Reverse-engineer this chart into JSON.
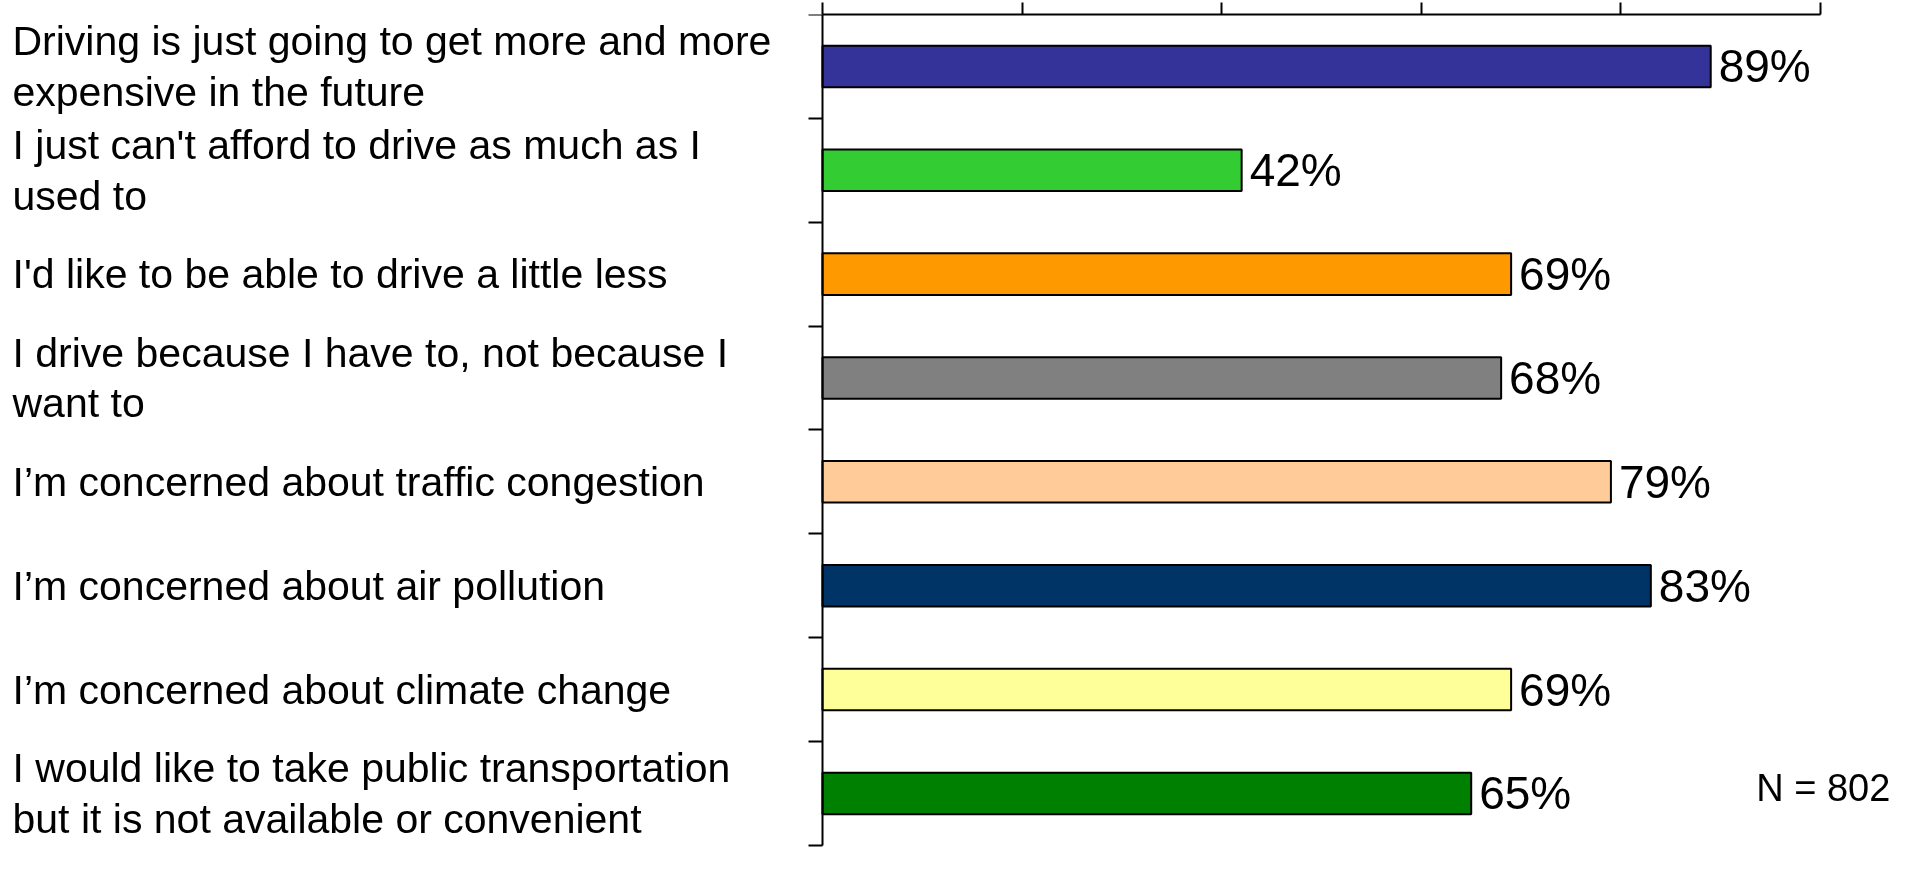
{
  "chart_data": {
    "type": "bar",
    "orientation": "horizontal",
    "categories": [
      "Driving is just going to get more and more expensive in the future",
      "I just can't afford to drive as much as I used to",
      "I'd like to be able to drive a little less",
      "I drive because I have to, not because I want to",
      "I’m concerned about traffic congestion",
      "I’m concerned about air pollution",
      "I’m concerned about climate change",
      "I would like to take public transportation but it is not available or convenient"
    ],
    "values": [
      89,
      42,
      69,
      68,
      79,
      83,
      69,
      65
    ],
    "colors": [
      "#333399",
      "#33cc33",
      "#ff9900",
      "#808080",
      "#ffcc99",
      "#003366",
      "#ffff99",
      "#008000"
    ],
    "value_labels": [
      "89%",
      "42%",
      "69%",
      "68%",
      "79%",
      "83%",
      "69%",
      "65%"
    ],
    "xlim": [
      0,
      100
    ],
    "xticks": [
      {
        "value": 0,
        "label": null
      },
      {
        "value": 20,
        "label": null
      },
      {
        "value": 40,
        "label": null
      },
      {
        "value": 60,
        "label": null
      },
      {
        "value": 80,
        "label": null
      },
      {
        "value": 100,
        "label": null
      }
    ],
    "tick_labels": "y",
    "grid": false,
    "annotations": [
      "N = 802"
    ]
  }
}
